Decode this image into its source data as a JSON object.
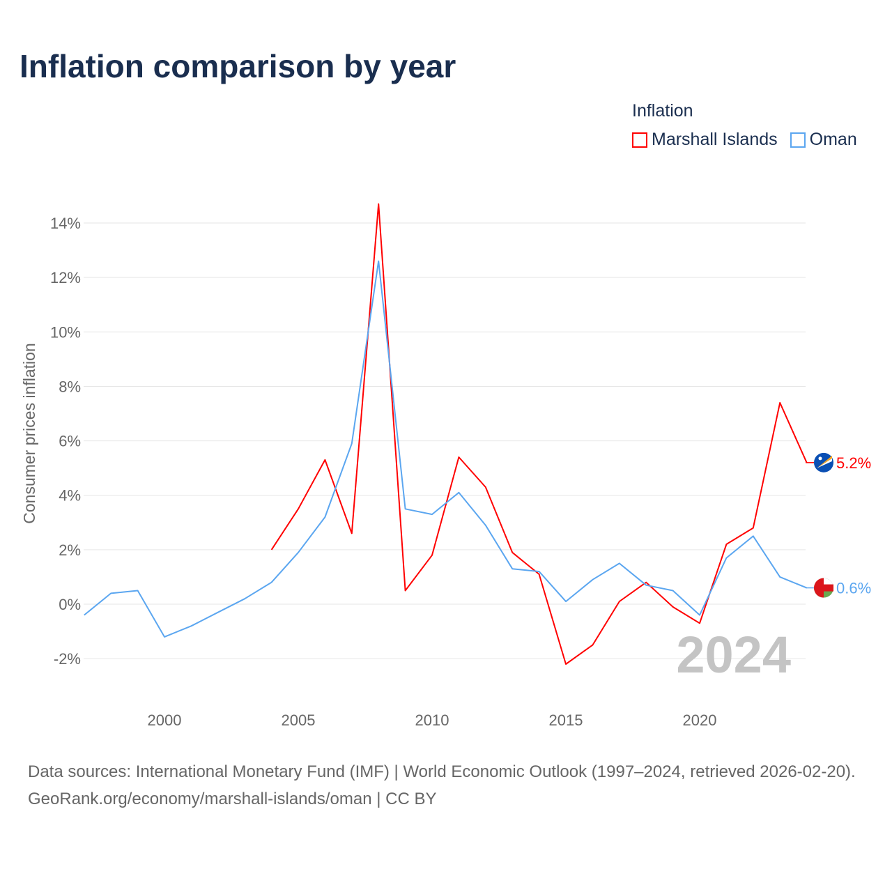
{
  "title": "Inflation comparison by year",
  "legend": {
    "title": "Inflation",
    "items": [
      {
        "label": "Marshall Islands",
        "color": "#ff0000"
      },
      {
        "label": "Oman",
        "color": "#5ba6f0"
      }
    ]
  },
  "watermark_year": "2024",
  "footer": {
    "sources": "Data sources: International Monetary Fund (IMF) | World Economic Outlook (1997–2024, retrieved 2026-02-20).",
    "link": "GeoRank.org/economy/marshall-islands/oman | CC BY"
  },
  "chart_data": {
    "type": "line",
    "ylabel": "Consumer prices inflation",
    "xlabel": "",
    "xlim": [
      1997,
      2024
    ],
    "ylim": [
      -3,
      15
    ],
    "x_ticks": [
      2000,
      2005,
      2010,
      2015,
      2020
    ],
    "y_ticks": [
      -2,
      0,
      2,
      4,
      6,
      8,
      10,
      12,
      14
    ],
    "y_tick_labels": [
      "-2%",
      "0%",
      "2%",
      "4%",
      "6%",
      "8%",
      "10%",
      "12%",
      "14%"
    ],
    "grid": true,
    "legend_position": "top-right",
    "series": [
      {
        "name": "Marshall Islands",
        "color": "#ff0000",
        "end_label": "5.2%",
        "x": [
          2004,
          2005,
          2006,
          2007,
          2008,
          2009,
          2010,
          2011,
          2012,
          2013,
          2014,
          2015,
          2016,
          2017,
          2018,
          2019,
          2020,
          2021,
          2022,
          2023,
          2024
        ],
        "values": [
          2.0,
          3.5,
          5.3,
          2.6,
          14.7,
          0.5,
          1.8,
          5.4,
          4.3,
          1.9,
          1.1,
          -2.2,
          -1.5,
          0.1,
          0.8,
          -0.1,
          -0.7,
          2.2,
          2.8,
          7.4,
          5.2
        ]
      },
      {
        "name": "Oman",
        "color": "#5ba6f0",
        "end_label": "0.6%",
        "x": [
          1997,
          1998,
          1999,
          2000,
          2001,
          2002,
          2003,
          2004,
          2005,
          2006,
          2007,
          2008,
          2009,
          2010,
          2011,
          2012,
          2013,
          2014,
          2015,
          2016,
          2017,
          2018,
          2019,
          2020,
          2021,
          2022,
          2023,
          2024
        ],
        "values": [
          -0.4,
          0.4,
          0.5,
          -1.2,
          -0.8,
          -0.3,
          0.2,
          0.8,
          1.9,
          3.2,
          5.9,
          12.6,
          3.5,
          3.3,
          4.1,
          2.9,
          1.3,
          1.2,
          0.1,
          0.9,
          1.5,
          0.7,
          0.5,
          -0.4,
          1.7,
          2.5,
          1.0,
          0.6
        ]
      }
    ]
  }
}
